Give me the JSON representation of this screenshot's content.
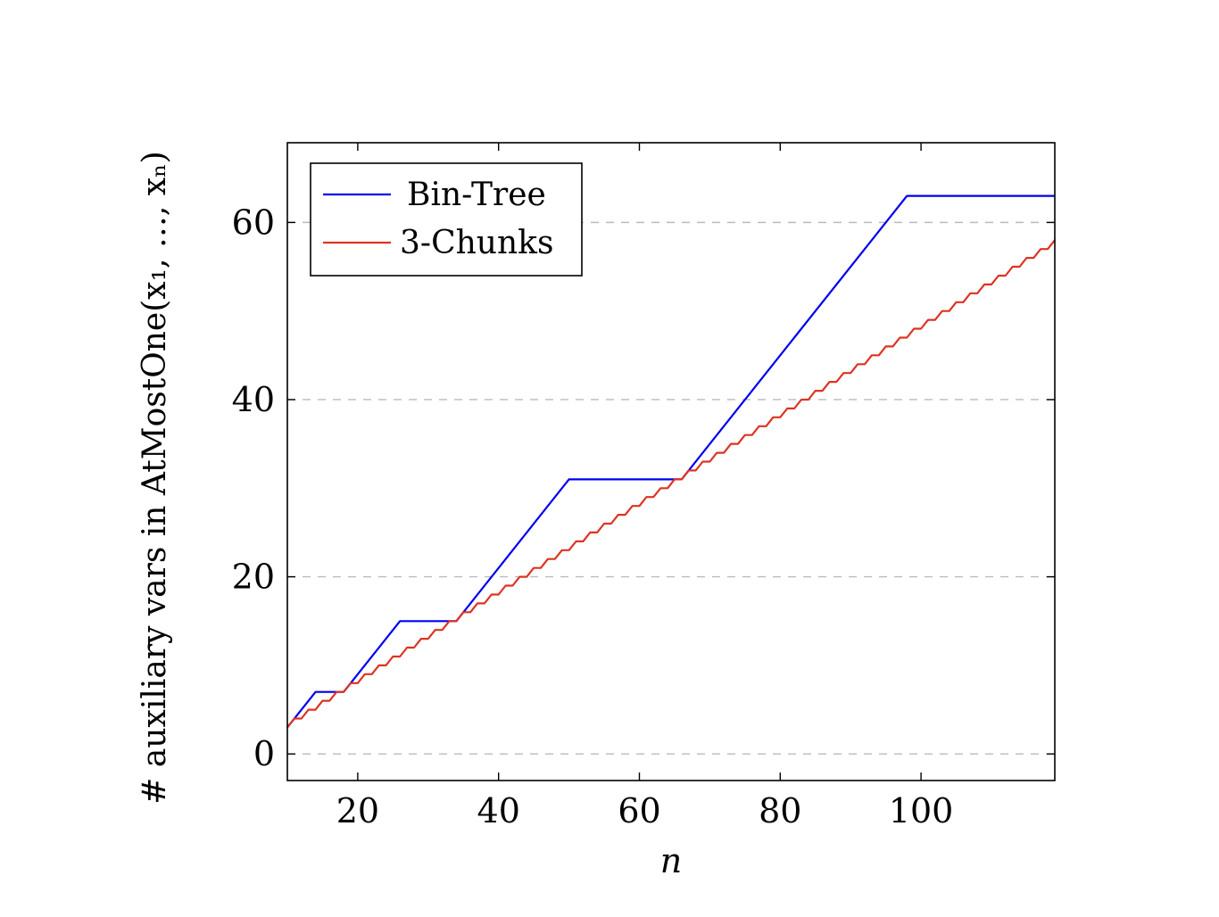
{
  "chart_data": {
    "type": "line",
    "xlabel": "n",
    "ylabel": "# auxiliary vars in AtMostOne(x₁, …, xₙ)",
    "xlim": [
      10,
      119
    ],
    "ylim": [
      -3,
      69
    ],
    "xticks": [
      20,
      40,
      60,
      80,
      100
    ],
    "yticks": [
      0,
      20,
      40,
      60
    ],
    "grid": {
      "y": "dashed",
      "x": "off"
    },
    "legend": "top-left",
    "series": [
      {
        "name": "Bin-Tree",
        "color": "#0000ee",
        "x": [
          10,
          14,
          18,
          26,
          34,
          50,
          66,
          98,
          119
        ],
        "y": [
          3,
          7,
          7,
          15,
          15,
          31,
          31,
          63,
          63
        ]
      },
      {
        "name": "3-Chunks",
        "color": "#dd3322",
        "rule": "staircase: value rises by 1 every 2 steps of n",
        "x": [
          10,
          119
        ],
        "y": [
          3,
          58
        ]
      }
    ]
  }
}
